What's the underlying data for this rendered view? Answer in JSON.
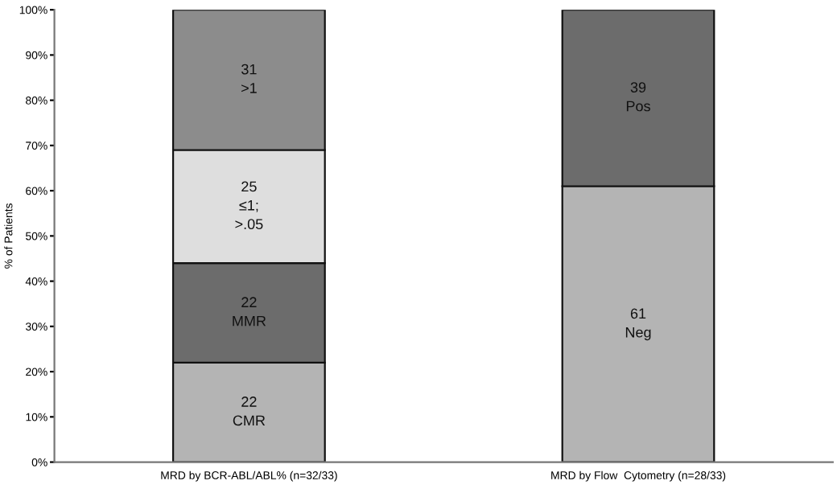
{
  "chart_data": {
    "type": "bar",
    "stacked": true,
    "ylabel": "% of Patients",
    "categories": [
      "MRD by BCR-ABL/ABL% (n=32/33)",
      "MRD by Flow  Cytometry (n=28/33)"
    ],
    "series": [
      {
        "color": "#b4b4b4",
        "values": [
          22,
          61
        ],
        "value_labels": [
          "22\nCMR",
          "61\nNeg"
        ]
      },
      {
        "color": "#6c6c6c",
        "values": [
          22,
          39
        ],
        "value_labels": [
          "22\nMMR",
          "39\nPos"
        ]
      },
      {
        "color": "#dedede",
        "values": [
          25,
          null
        ],
        "value_labels": [
          "25\n≤1;\n>.05",
          null
        ]
      },
      {
        "color": "#8c8c8c",
        "values": [
          31,
          null
        ],
        "value_labels": [
          "31\n>1",
          null
        ]
      }
    ],
    "ylim": [
      0,
      100
    ],
    "yticks": [
      {
        "value": 0,
        "label": "0%"
      },
      {
        "value": 10,
        "label": "10%"
      },
      {
        "value": 20,
        "label": "20%"
      },
      {
        "value": 30,
        "label": "30%"
      },
      {
        "value": 40,
        "label": "40%"
      },
      {
        "value": 50,
        "label": "50%"
      },
      {
        "value": 60,
        "label": "60%"
      },
      {
        "value": 70,
        "label": "70%"
      },
      {
        "value": 80,
        "label": "80%"
      },
      {
        "value": 90,
        "label": "90%"
      },
      {
        "value": 100,
        "label": "100%"
      }
    ],
    "grid": false,
    "legend": false
  }
}
